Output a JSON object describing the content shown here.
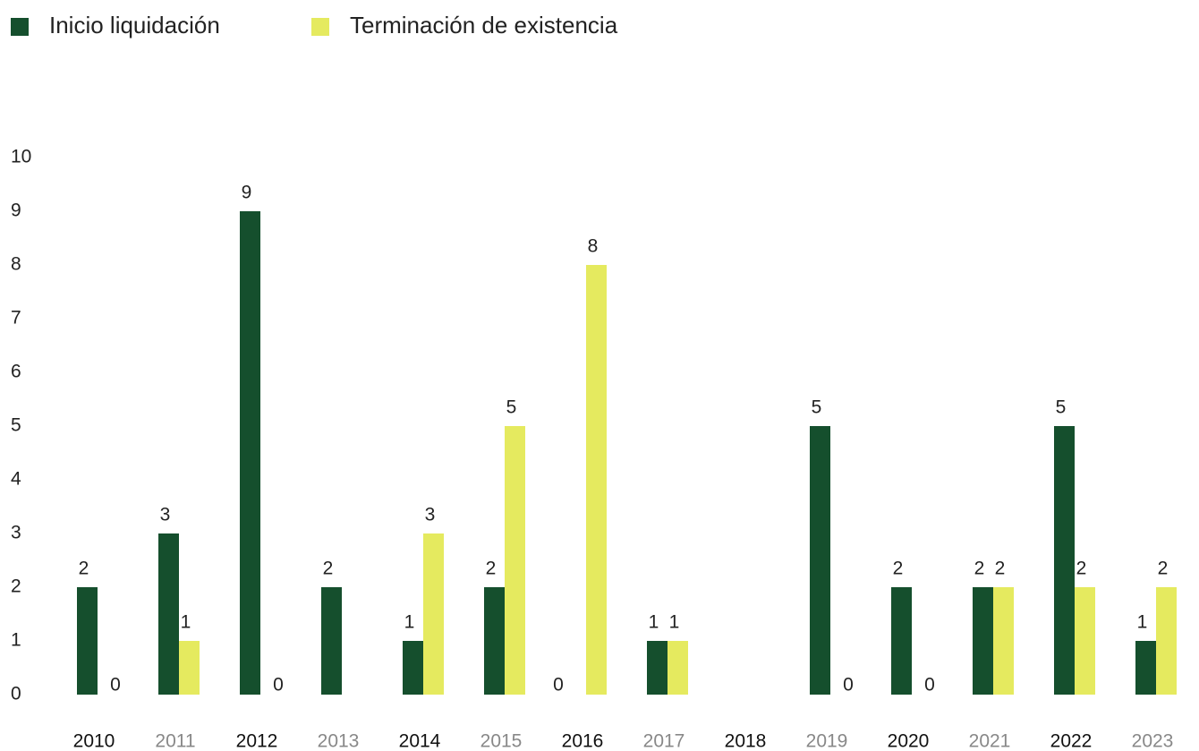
{
  "chart_data": {
    "type": "bar",
    "categories": [
      "2010",
      "2011",
      "2012",
      "2013",
      "2014",
      "2015",
      "2016",
      "2017",
      "2018",
      "2019",
      "2020",
      "2021",
      "2022",
      "2023"
    ],
    "series": [
      {
        "name": "Inicio liquidación",
        "color": "#154f2d",
        "values": [
          2,
          3,
          9,
          2,
          1,
          2,
          0,
          1,
          null,
          5,
          2,
          2,
          5,
          1
        ]
      },
      {
        "name": "Terminación de existencia",
        "color": "#e5ea5f",
        "values": [
          0,
          1,
          0,
          null,
          3,
          5,
          8,
          1,
          null,
          0,
          0,
          2,
          2,
          2
        ]
      }
    ],
    "ylim": [
      0,
      10
    ],
    "yticks": [
      0,
      1,
      2,
      3,
      4,
      5,
      6,
      7,
      8,
      9,
      10
    ],
    "grid": false,
    "legend": "top-left"
  }
}
